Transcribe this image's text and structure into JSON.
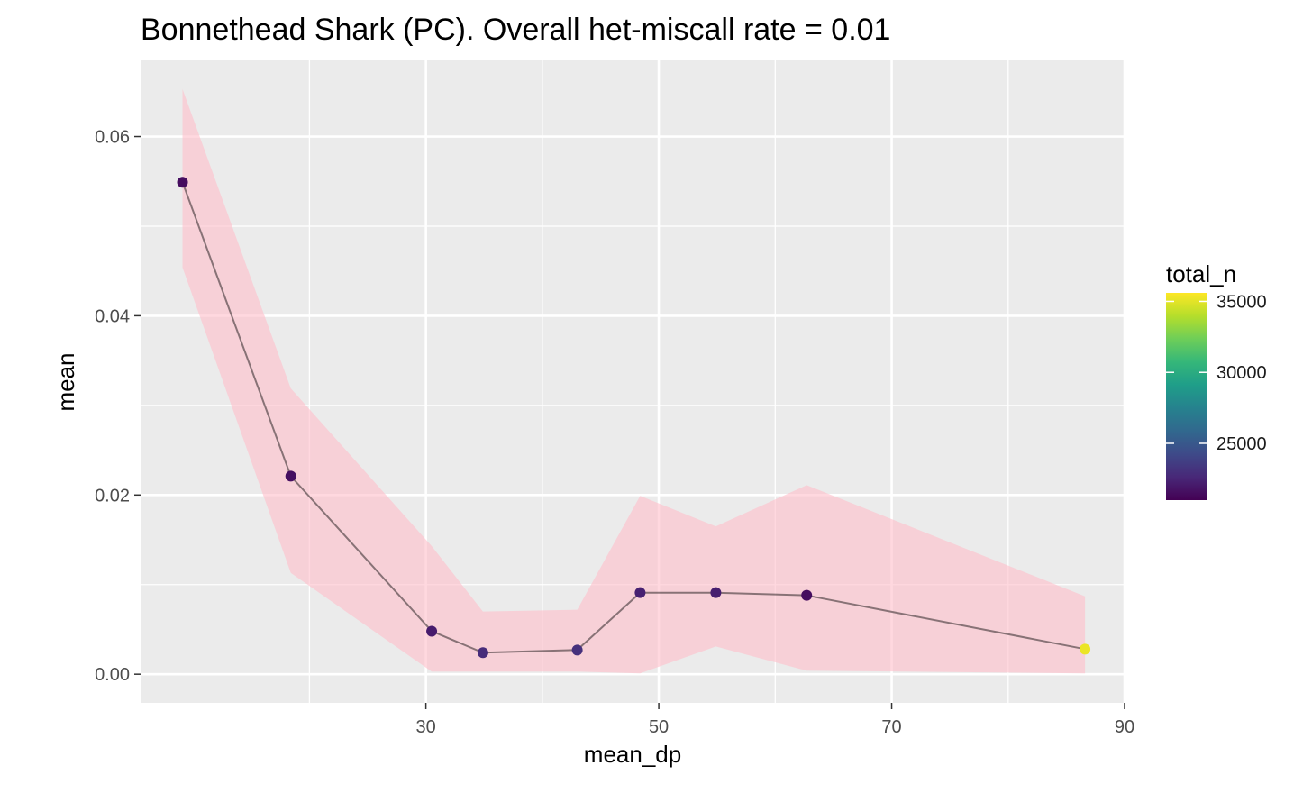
{
  "chart_data": {
    "type": "line",
    "title": "Bonnethead Shark (PC).  Overall het-miscall rate = 0.01",
    "xlabel": "mean_dp",
    "ylabel": "mean",
    "xlim": [
      5.5,
      90
    ],
    "ylim": [
      -0.0032,
      0.0685
    ],
    "x_ticks": [
      30,
      50,
      70,
      90
    ],
    "x_tick_labels": [
      "30",
      "50",
      "70",
      "90"
    ],
    "x_minor_ticks": [
      20,
      40,
      60,
      80
    ],
    "y_ticks": [
      0.0,
      0.02,
      0.04,
      0.06
    ],
    "y_tick_labels": [
      "0.00",
      "0.02",
      "0.04",
      "0.06"
    ],
    "y_minor_ticks": [
      0.01,
      0.03,
      0.05
    ],
    "grid": true,
    "panel_background": "#ebebeb",
    "ribbon_color": "#ffc0cb",
    "line_color": "#000000",
    "series": [
      {
        "x": [
          9.1,
          18.4,
          30.5,
          34.9,
          43.0,
          48.4,
          54.9,
          62.7,
          86.6
        ],
        "y": [
          0.0549,
          0.0221,
          0.0048,
          0.0024,
          0.0027,
          0.0091,
          0.0091,
          0.0088,
          0.0028
        ],
        "lower": [
          0.0454,
          0.0113,
          0.0003,
          0.0003,
          0.0003,
          0.0001,
          0.0031,
          0.0004,
          0.0001
        ],
        "upper": [
          0.0653,
          0.0319,
          0.0143,
          0.007,
          0.0072,
          0.0199,
          0.0165,
          0.0211,
          0.0087
        ],
        "total_n": [
          21500,
          21600,
          22100,
          22800,
          23000,
          22300,
          22200,
          21500,
          35200
        ]
      }
    ],
    "legend": {
      "title": "total_n",
      "position": "right",
      "scale": "viridis",
      "limits": [
        21000,
        35600
      ],
      "breaks": [
        25000,
        30000,
        35000
      ],
      "break_labels": [
        "25000",
        "30000",
        "35000"
      ],
      "colors": [
        "#440154",
        "#482878",
        "#3e4a89",
        "#31688e",
        "#26828e",
        "#1f9e89",
        "#35b779",
        "#6ece58",
        "#b5de2b",
        "#fde725"
      ]
    }
  }
}
